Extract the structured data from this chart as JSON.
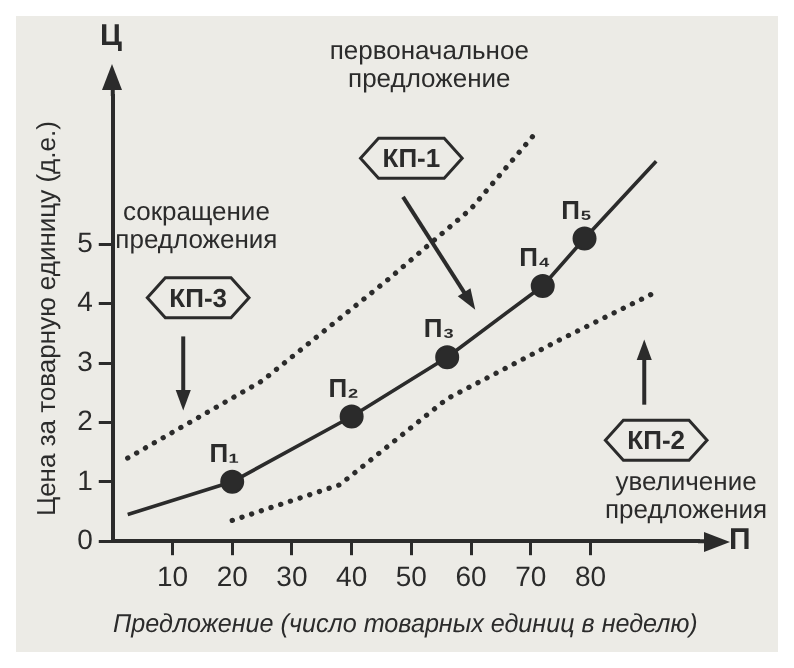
{
  "chart_data": {
    "type": "line",
    "xlabel": "Предложение (число товарных единиц в неделю)",
    "ylabel": "Цена за товарную единицу (д.е.)",
    "xlim": [
      0,
      98
    ],
    "ylim": [
      0,
      7.5
    ],
    "xticks": [
      10,
      20,
      30,
      40,
      50,
      60,
      70,
      80
    ],
    "yticks": [
      0,
      1,
      2,
      3,
      4,
      5
    ],
    "grid": false,
    "legend": false,
    "series": [
      {
        "color": "#2b2b2b",
        "marker": "none",
        "line_style": "solid",
        "x": [
          2.5,
          20,
          40,
          56,
          72,
          79,
          91
        ],
        "values": [
          0.45,
          1,
          2.1,
          3.1,
          4.3,
          5.1,
          6.4
        ]
      },
      {
        "type": "scatter",
        "color": "#2b2b2b",
        "marker": "circle",
        "x": [
          20,
          40,
          56,
          72,
          79
        ],
        "values": [
          1,
          2.1,
          3.1,
          4.3,
          5.1
        ]
      },
      {
        "color": "#2b2b2b",
        "marker": "none",
        "line_style": "dotted",
        "x": [
          2.5,
          25,
          46,
          60,
          71
        ],
        "values": [
          1.4,
          2.7,
          4.4,
          5.6,
          6.9
        ]
      },
      {
        "color": "#2b2b2b",
        "marker": "none",
        "line_style": "dotted",
        "x": [
          20,
          38,
          56,
          75,
          91
        ],
        "values": [
          0.35,
          0.95,
          2.4,
          3.4,
          4.2
        ]
      }
    ],
    "annotations": [
      "Ц",
      "П",
      "первоначальное\nпредложение",
      "КП-1",
      "сокращение\nпредложения",
      "КП-3",
      "КП-2",
      "увеличение\nпредложения",
      {
        "text": "П₁",
        "x": 20,
        "y": 1
      },
      {
        "text": "П₂",
        "x": 40,
        "y": 2.1
      },
      {
        "text": "П₃",
        "x": 56,
        "y": 3.1
      },
      {
        "text": "П₄",
        "x": 72,
        "y": 4.3
      },
      {
        "text": "П₅",
        "x": 79,
        "y": 5.1
      }
    ]
  }
}
